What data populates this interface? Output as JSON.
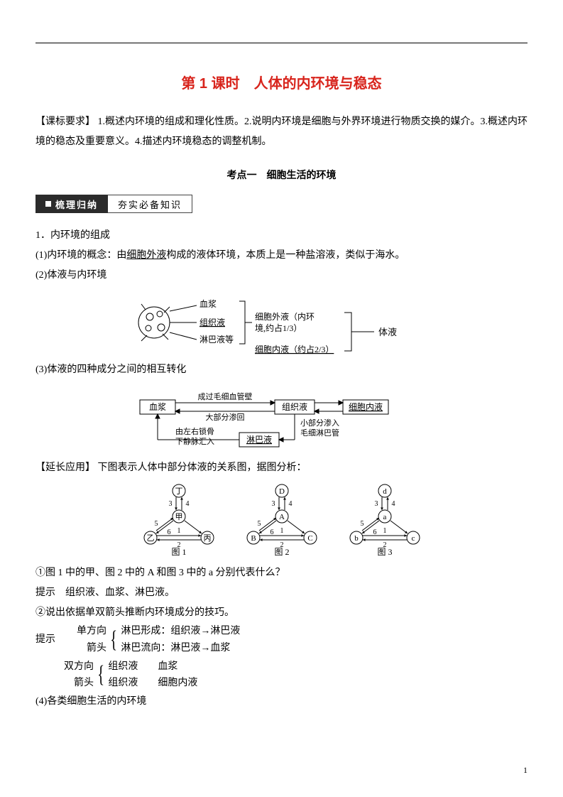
{
  "title": "第 1 课时　人体的内环境与稳态",
  "kebiao_label": "【课标要求】",
  "kebiao_text": " 1.概述内环境的组成和理化性质。2.说明内环境是细胞与外界环境进行物质交换的媒介。3.概述内环境的稳态及重要意义。4.描述内环境稳态的调整机制。",
  "kaodian1": "考点一　细胞生活的环境",
  "tab_left": "梳理归纳",
  "tab_right": "夯实必备知识",
  "p1": "1．内环境的组成",
  "p1_1_a": "(1)内环境的概念：由",
  "p1_1_u": "细胞外液",
  "p1_1_b": "构成的液体环境，本质上是一种盐溶液，类似于海水。",
  "p1_2": "(2)体液与内环境",
  "diagram1": {
    "labels": {
      "xuejiang": "血浆",
      "zuzhi": "组织液",
      "linba": "淋巴液等",
      "waiye_a": "细胞外液（内环",
      "waiye_b": "境,约占1/3）",
      "neiye": "细胞内液（约占2/3）",
      "tiye": "体液"
    },
    "font_size": 12,
    "stroke": "#000000"
  },
  "p1_3": "(3)体液的四种成分之间的相互转化",
  "diagram2": {
    "nodes": {
      "xuejiang": "血浆",
      "zuzhi": "组织液",
      "neiye": "细胞内液",
      "linba": "淋巴液"
    },
    "edges": {
      "top": "成过毛细血管壁",
      "mid": "大部分渗回",
      "left_a": "由左右锁骨",
      "left_b": "下静脉汇入",
      "right_a": "小部分渗入",
      "right_b": "毛细淋巴管"
    },
    "font_size": 11,
    "box_stroke": "#000000"
  },
  "yanchang_label": "【延长应用】",
  "yanchang_text": " 下图表示人体中部分体液的关系图，据图分析：",
  "diagram3": {
    "g1": {
      "top": "丁",
      "center": "甲",
      "left": "乙",
      "right": "丙",
      "caption": "图 1"
    },
    "g2": {
      "top": "D",
      "center": "A",
      "left": "B",
      "right": "C",
      "caption": "图 2"
    },
    "g3": {
      "top": "d",
      "center": "a",
      "left": "b",
      "right": "c",
      "caption": "图 3"
    },
    "edge_labels": [
      "1",
      "2",
      "3",
      "4",
      "5",
      "6"
    ],
    "font_size": 11,
    "stroke": "#000000"
  },
  "q1": "①图 1 中的甲、图 2 中的 A 和图 3 中的 a 分别代表什么？",
  "q1_hint": "提示　组织液、血浆、淋巴液。",
  "q2": "②说出依据单双箭头推断内环境成分的技巧。",
  "hint_label": "提示",
  "bracket1": {
    "head": "单方向",
    "head2": "箭头",
    "line1": "淋巴形成：组织液→淋巴液",
    "line2": "淋巴流向：淋巴液→血浆"
  },
  "bracket2": {
    "head": "双方向",
    "head2": "箭头",
    "line1": "组织液　　血浆",
    "line2": "组织液　　细胞内液"
  },
  "p1_4": "(4)各类细胞生活的内环境",
  "page_number": "1",
  "colors": {
    "title": "#d8241c",
    "text": "#000000",
    "tab_dark_bg": "#2b2b2b"
  }
}
